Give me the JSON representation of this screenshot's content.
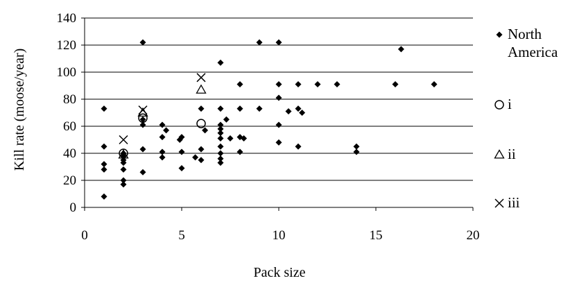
{
  "chart_data": {
    "type": "scatter",
    "xlabel": "Pack size",
    "ylabel": "Kill rate (moose/year)",
    "xlim": [
      0,
      20
    ],
    "ylim": [
      0,
      140
    ],
    "xticks": [
      "0",
      "5",
      "10",
      "15",
      "20"
    ],
    "yticks": [
      "0",
      "20",
      "40",
      "60",
      "80",
      "100",
      "120",
      "140"
    ],
    "grid": "horizontal",
    "legend_position": "right",
    "series": [
      {
        "name": "North America",
        "legend_label_lines": [
          "North",
          "America"
        ],
        "marker": "diamond",
        "color": "#000000",
        "points": [
          [
            1,
            8
          ],
          [
            1,
            28
          ],
          [
            1,
            32
          ],
          [
            1,
            45
          ],
          [
            1,
            73
          ],
          [
            2,
            17
          ],
          [
            2,
            20
          ],
          [
            2,
            28
          ],
          [
            2,
            33
          ],
          [
            2,
            35
          ],
          [
            2,
            38
          ],
          [
            2,
            40
          ],
          [
            3,
            26
          ],
          [
            3,
            43
          ],
          [
            3,
            61
          ],
          [
            3,
            65
          ],
          [
            3,
            122
          ],
          [
            4,
            37
          ],
          [
            4,
            41
          ],
          [
            4,
            52
          ],
          [
            4,
            61
          ],
          [
            4.2,
            57
          ],
          [
            4.9,
            50
          ],
          [
            5,
            29
          ],
          [
            5,
            41
          ],
          [
            5,
            52
          ],
          [
            5.7,
            37
          ],
          [
            6,
            35
          ],
          [
            6,
            43
          ],
          [
            6,
            73
          ],
          [
            6.2,
            57
          ],
          [
            7,
            33
          ],
          [
            7,
            36
          ],
          [
            7,
            40
          ],
          [
            7,
            45
          ],
          [
            7,
            51
          ],
          [
            7,
            55
          ],
          [
            7,
            58
          ],
          [
            7,
            61
          ],
          [
            7,
            73
          ],
          [
            7,
            107
          ],
          [
            7.3,
            65
          ],
          [
            7.5,
            51
          ],
          [
            8,
            41
          ],
          [
            8,
            52
          ],
          [
            8,
            73
          ],
          [
            8,
            91
          ],
          [
            8.2,
            51
          ],
          [
            9,
            73
          ],
          [
            9,
            122
          ],
          [
            10,
            48
          ],
          [
            10,
            61
          ],
          [
            10,
            81
          ],
          [
            10,
            91
          ],
          [
            10,
            122
          ],
          [
            10.5,
            71
          ],
          [
            11,
            45
          ],
          [
            11,
            73
          ],
          [
            11,
            91
          ],
          [
            11.2,
            70
          ],
          [
            12,
            91
          ],
          [
            13,
            91
          ],
          [
            14,
            41
          ],
          [
            14,
            45
          ],
          [
            16,
            91
          ],
          [
            16.3,
            117
          ],
          [
            18,
            91
          ]
        ]
      },
      {
        "name": "i",
        "marker": "circle",
        "color": "#000000",
        "points": [
          [
            2,
            40
          ],
          [
            3,
            66
          ],
          [
            6,
            62
          ]
        ]
      },
      {
        "name": "ii",
        "marker": "triangle",
        "color": "#000000",
        "points": [
          [
            2,
            39
          ],
          [
            3,
            70
          ],
          [
            6,
            87
          ]
        ]
      },
      {
        "name": "iii",
        "marker": "x",
        "color": "#000000",
        "points": [
          [
            2,
            50
          ],
          [
            3,
            72
          ],
          [
            6,
            96
          ]
        ]
      }
    ]
  }
}
